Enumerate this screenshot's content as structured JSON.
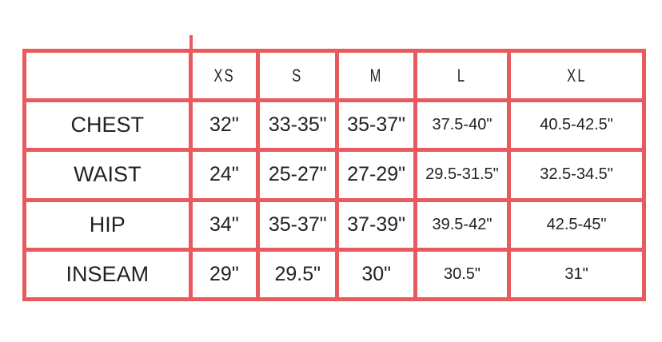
{
  "border_color": "#e85a5e",
  "columns": [
    "",
    "XS",
    "S",
    "M",
    "L",
    "XL"
  ],
  "rows": [
    {
      "label": "CHEST",
      "values": [
        "32\"",
        "33-35\"",
        "35-37\"",
        "37.5-40\"",
        "40.5-42.5\""
      ]
    },
    {
      "label": "WAIST",
      "values": [
        "24\"",
        "25-27\"",
        "27-29\"",
        "29.5-31.5\"",
        "32.5-34.5\""
      ]
    },
    {
      "label": "HIP",
      "values": [
        "34\"",
        "35-37\"",
        "37-39\"",
        "39.5-42\"",
        "42.5-45\""
      ]
    },
    {
      "label": "INSEAM",
      "values": [
        "29\"",
        "29.5\"",
        "30\"",
        "30.5\"",
        "31\""
      ]
    }
  ]
}
